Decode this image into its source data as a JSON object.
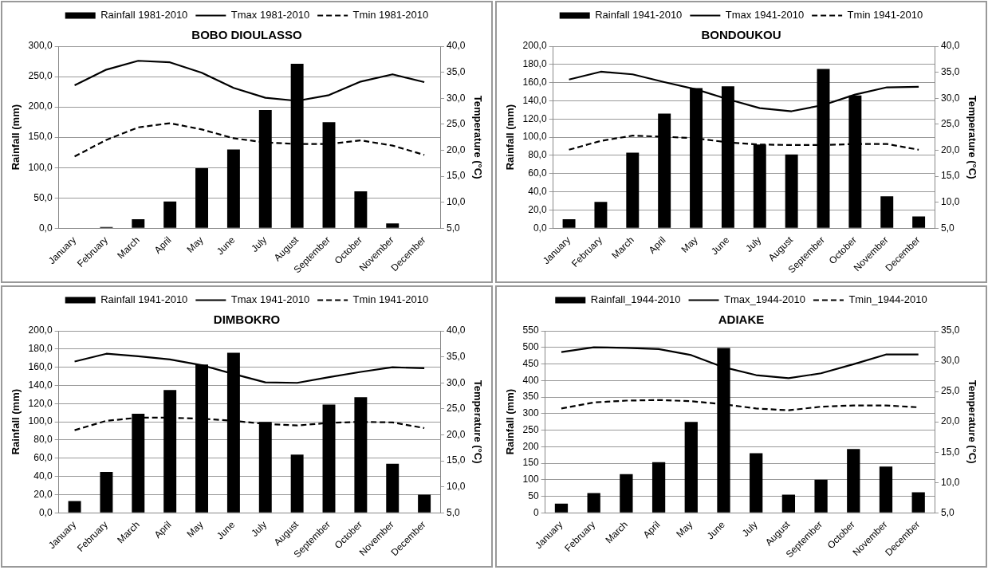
{
  "chart_data": [
    {
      "type": "bar",
      "title": "BOBO DIOULASSO",
      "categories": [
        "January",
        "February",
        "March",
        "April",
        "May",
        "June",
        "July",
        "August",
        "September",
        "October",
        "November",
        "December"
      ],
      "ylabel": "Rainfall (mm)",
      "y2label": "Temperature (°C)",
      "legend": "top",
      "grid": "y",
      "marker": "none",
      "ylim": [
        0,
        300
      ],
      "yticks": [
        {
          "value": 0,
          "label": "0,0"
        },
        {
          "value": 50,
          "label": "50,0"
        },
        {
          "value": 100,
          "label": "100,0"
        },
        {
          "value": 150,
          "label": "150,0"
        },
        {
          "value": 200,
          "label": "200,0"
        },
        {
          "value": 250,
          "label": "250,0"
        },
        {
          "value": 300,
          "label": "300,0"
        }
      ],
      "y2lim": [
        5,
        40
      ],
      "y2ticks": [
        {
          "value": 5,
          "label": "5,0"
        },
        {
          "value": 10,
          "label": "10,0"
        },
        {
          "value": 15,
          "label": "15,0"
        },
        {
          "value": 20,
          "label": "20,0"
        },
        {
          "value": 25,
          "label": "25,0"
        },
        {
          "value": 30,
          "label": "30,0"
        },
        {
          "value": 35,
          "label": "35,0"
        },
        {
          "value": 40,
          "label": "40,0"
        }
      ],
      "series": [
        {
          "name": "Rainfall 1981-2010",
          "color": "#000000",
          "values": [
            0,
            2,
            15,
            44,
            99,
            130,
            195,
            271,
            175,
            61,
            8,
            0
          ]
        },
        {
          "name": "Tmax 1981-2010",
          "type": "line",
          "axis": "y2",
          "color": "#000000",
          "line_style": "solid",
          "values": [
            32.5,
            35.5,
            37.2,
            36.9,
            34.9,
            32.0,
            30.1,
            29.5,
            30.6,
            33.2,
            34.6,
            33.1
          ]
        },
        {
          "name": "Tmin 1981-2010",
          "type": "line",
          "axis": "y2",
          "color": "#000000",
          "line_style": "dashed",
          "values": [
            18.8,
            22.0,
            24.4,
            25.2,
            24.0,
            22.3,
            21.5,
            21.2,
            21.2,
            21.9,
            20.9,
            19.1
          ]
        }
      ]
    },
    {
      "type": "bar",
      "title": "BONDOUKOU",
      "categories": [
        "January",
        "February",
        "March",
        "April",
        "May",
        "June",
        "July",
        "August",
        "September",
        "October",
        "November",
        "December"
      ],
      "ylabel": "Rainfall (mm)",
      "y2label": "Temperature (°C)",
      "legend": "top",
      "grid": "y",
      "marker": "none",
      "ylim": [
        0,
        200
      ],
      "yticks": [
        {
          "value": 0,
          "label": "0,0"
        },
        {
          "value": 20,
          "label": "20,0"
        },
        {
          "value": 40,
          "label": "40,0"
        },
        {
          "value": 60,
          "label": "60,0"
        },
        {
          "value": 80,
          "label": "80,0"
        },
        {
          "value": 100,
          "label": "100,0"
        },
        {
          "value": 120,
          "label": "120,0"
        },
        {
          "value": 140,
          "label": "140,0"
        },
        {
          "value": 160,
          "label": "160,0"
        },
        {
          "value": 180,
          "label": "180,0"
        },
        {
          "value": 200,
          "label": "200,0"
        }
      ],
      "y2lim": [
        5,
        40
      ],
      "y2ticks": [
        {
          "value": 5,
          "label": "5,0"
        },
        {
          "value": 10,
          "label": "10,0"
        },
        {
          "value": 15,
          "label": "15,0"
        },
        {
          "value": 20,
          "label": "20,0"
        },
        {
          "value": 25,
          "label": "25,0"
        },
        {
          "value": 30,
          "label": "30,0"
        },
        {
          "value": 35,
          "label": "35,0"
        },
        {
          "value": 40,
          "label": "40,0"
        }
      ],
      "series": [
        {
          "name": "Rainfall 1941-2010",
          "color": "#000000",
          "values": [
            10,
            29,
            83,
            126,
            154,
            156,
            92,
            81,
            175,
            146,
            35,
            13
          ]
        },
        {
          "name": "Tmax 1941-2010",
          "type": "line",
          "axis": "y2",
          "color": "#000000",
          "line_style": "solid",
          "values": [
            33.6,
            35.1,
            34.6,
            33.1,
            31.7,
            29.8,
            28.1,
            27.5,
            28.7,
            30.7,
            32.1,
            32.2
          ]
        },
        {
          "name": "Tmin 1941-2010",
          "type": "line",
          "axis": "y2",
          "color": "#000000",
          "line_style": "dashed",
          "values": [
            20.1,
            21.8,
            22.8,
            22.6,
            22.3,
            21.5,
            21.1,
            21.0,
            21.0,
            21.2,
            21.2,
            20.1
          ]
        }
      ]
    },
    {
      "type": "bar",
      "title": "DIMBOKRO",
      "categories": [
        "January",
        "February",
        "March",
        "April",
        "May",
        "June",
        "July",
        "August",
        "September",
        "October",
        "November",
        "December"
      ],
      "ylabel": "Rainfall (mm)",
      "y2label": "Temperature (°C)",
      "legend": "top",
      "grid": "y",
      "marker": "none",
      "ylim": [
        0,
        200
      ],
      "yticks": [
        {
          "value": 0,
          "label": "0,0"
        },
        {
          "value": 20,
          "label": "20,0"
        },
        {
          "value": 40,
          "label": "40,0"
        },
        {
          "value": 60,
          "label": "60,0"
        },
        {
          "value": 80,
          "label": "80,0"
        },
        {
          "value": 100,
          "label": "100,0"
        },
        {
          "value": 120,
          "label": "120,0"
        },
        {
          "value": 140,
          "label": "140,0"
        },
        {
          "value": 160,
          "label": "160,0"
        },
        {
          "value": 180,
          "label": "180,0"
        },
        {
          "value": 200,
          "label": "200,0"
        }
      ],
      "y2lim": [
        5,
        40
      ],
      "y2ticks": [
        {
          "value": 5,
          "label": "5,0"
        },
        {
          "value": 10,
          "label": "10,0"
        },
        {
          "value": 15,
          "label": "15,0"
        },
        {
          "value": 20,
          "label": "20,0"
        },
        {
          "value": 25,
          "label": "25,0"
        },
        {
          "value": 30,
          "label": "30,0"
        },
        {
          "value": 35,
          "label": "35,0"
        },
        {
          "value": 40,
          "label": "40,0"
        }
      ],
      "series": [
        {
          "name": "Rainfall 1941-2010",
          "color": "#000000",
          "values": [
            13,
            45,
            109,
            135,
            163,
            176,
            100,
            64,
            119,
            127,
            54,
            20
          ]
        },
        {
          "name": "Tmax 1941-2010",
          "type": "line",
          "axis": "y2",
          "color": "#000000",
          "line_style": "solid",
          "values": [
            34.1,
            35.6,
            35.1,
            34.5,
            33.4,
            31.7,
            30.1,
            30.0,
            31.1,
            32.1,
            33.0,
            32.8
          ]
        },
        {
          "name": "Tmin 1941-2010",
          "type": "line",
          "axis": "y2",
          "color": "#000000",
          "line_style": "dashed",
          "values": [
            20.9,
            22.7,
            23.3,
            23.3,
            23.1,
            22.7,
            22.1,
            21.8,
            22.3,
            22.5,
            22.4,
            21.3
          ]
        }
      ]
    },
    {
      "type": "bar",
      "title": "ADIAKE",
      "categories": [
        "January",
        "February",
        "March",
        "April",
        "May",
        "June",
        "July",
        "August",
        "September",
        "October",
        "November",
        "December"
      ],
      "ylabel": "Rainfall (mm)",
      "y2label": "Temperature (°C)",
      "legend": "top",
      "grid": "y",
      "marker": "none",
      "ylim": [
        0,
        550
      ],
      "yticks": [
        0,
        50,
        100,
        150,
        200,
        250,
        300,
        350,
        400,
        450,
        500,
        550
      ],
      "y2lim": [
        5,
        35
      ],
      "y2ticks": [
        {
          "value": 5,
          "label": "5,0"
        },
        {
          "value": 10,
          "label": "10,0"
        },
        {
          "value": 15,
          "label": "15,0"
        },
        {
          "value": 20,
          "label": "20,0"
        },
        {
          "value": 25,
          "label": "25,0"
        },
        {
          "value": 30,
          "label": "30,0"
        },
        {
          "value": 35,
          "label": "35,0"
        }
      ],
      "series": [
        {
          "name": "Rainfall_1944-2010",
          "color": "#000000",
          "values": [
            28,
            60,
            117,
            153,
            275,
            498,
            180,
            55,
            100,
            193,
            140,
            62
          ]
        },
        {
          "name": "Tmax_1944-2010",
          "type": "line",
          "axis": "y2",
          "color": "#000000",
          "line_style": "solid",
          "values": [
            31.5,
            32.3,
            32.2,
            32.0,
            31.0,
            29.0,
            27.7,
            27.2,
            28.0,
            29.5,
            31.1,
            31.1
          ]
        },
        {
          "name": "Tmin_1944-2010",
          "type": "line",
          "axis": "y2",
          "color": "#000000",
          "line_style": "dashed",
          "values": [
            22.2,
            23.2,
            23.5,
            23.6,
            23.4,
            22.9,
            22.2,
            21.9,
            22.5,
            22.7,
            22.7,
            22.4
          ]
        }
      ]
    }
  ]
}
